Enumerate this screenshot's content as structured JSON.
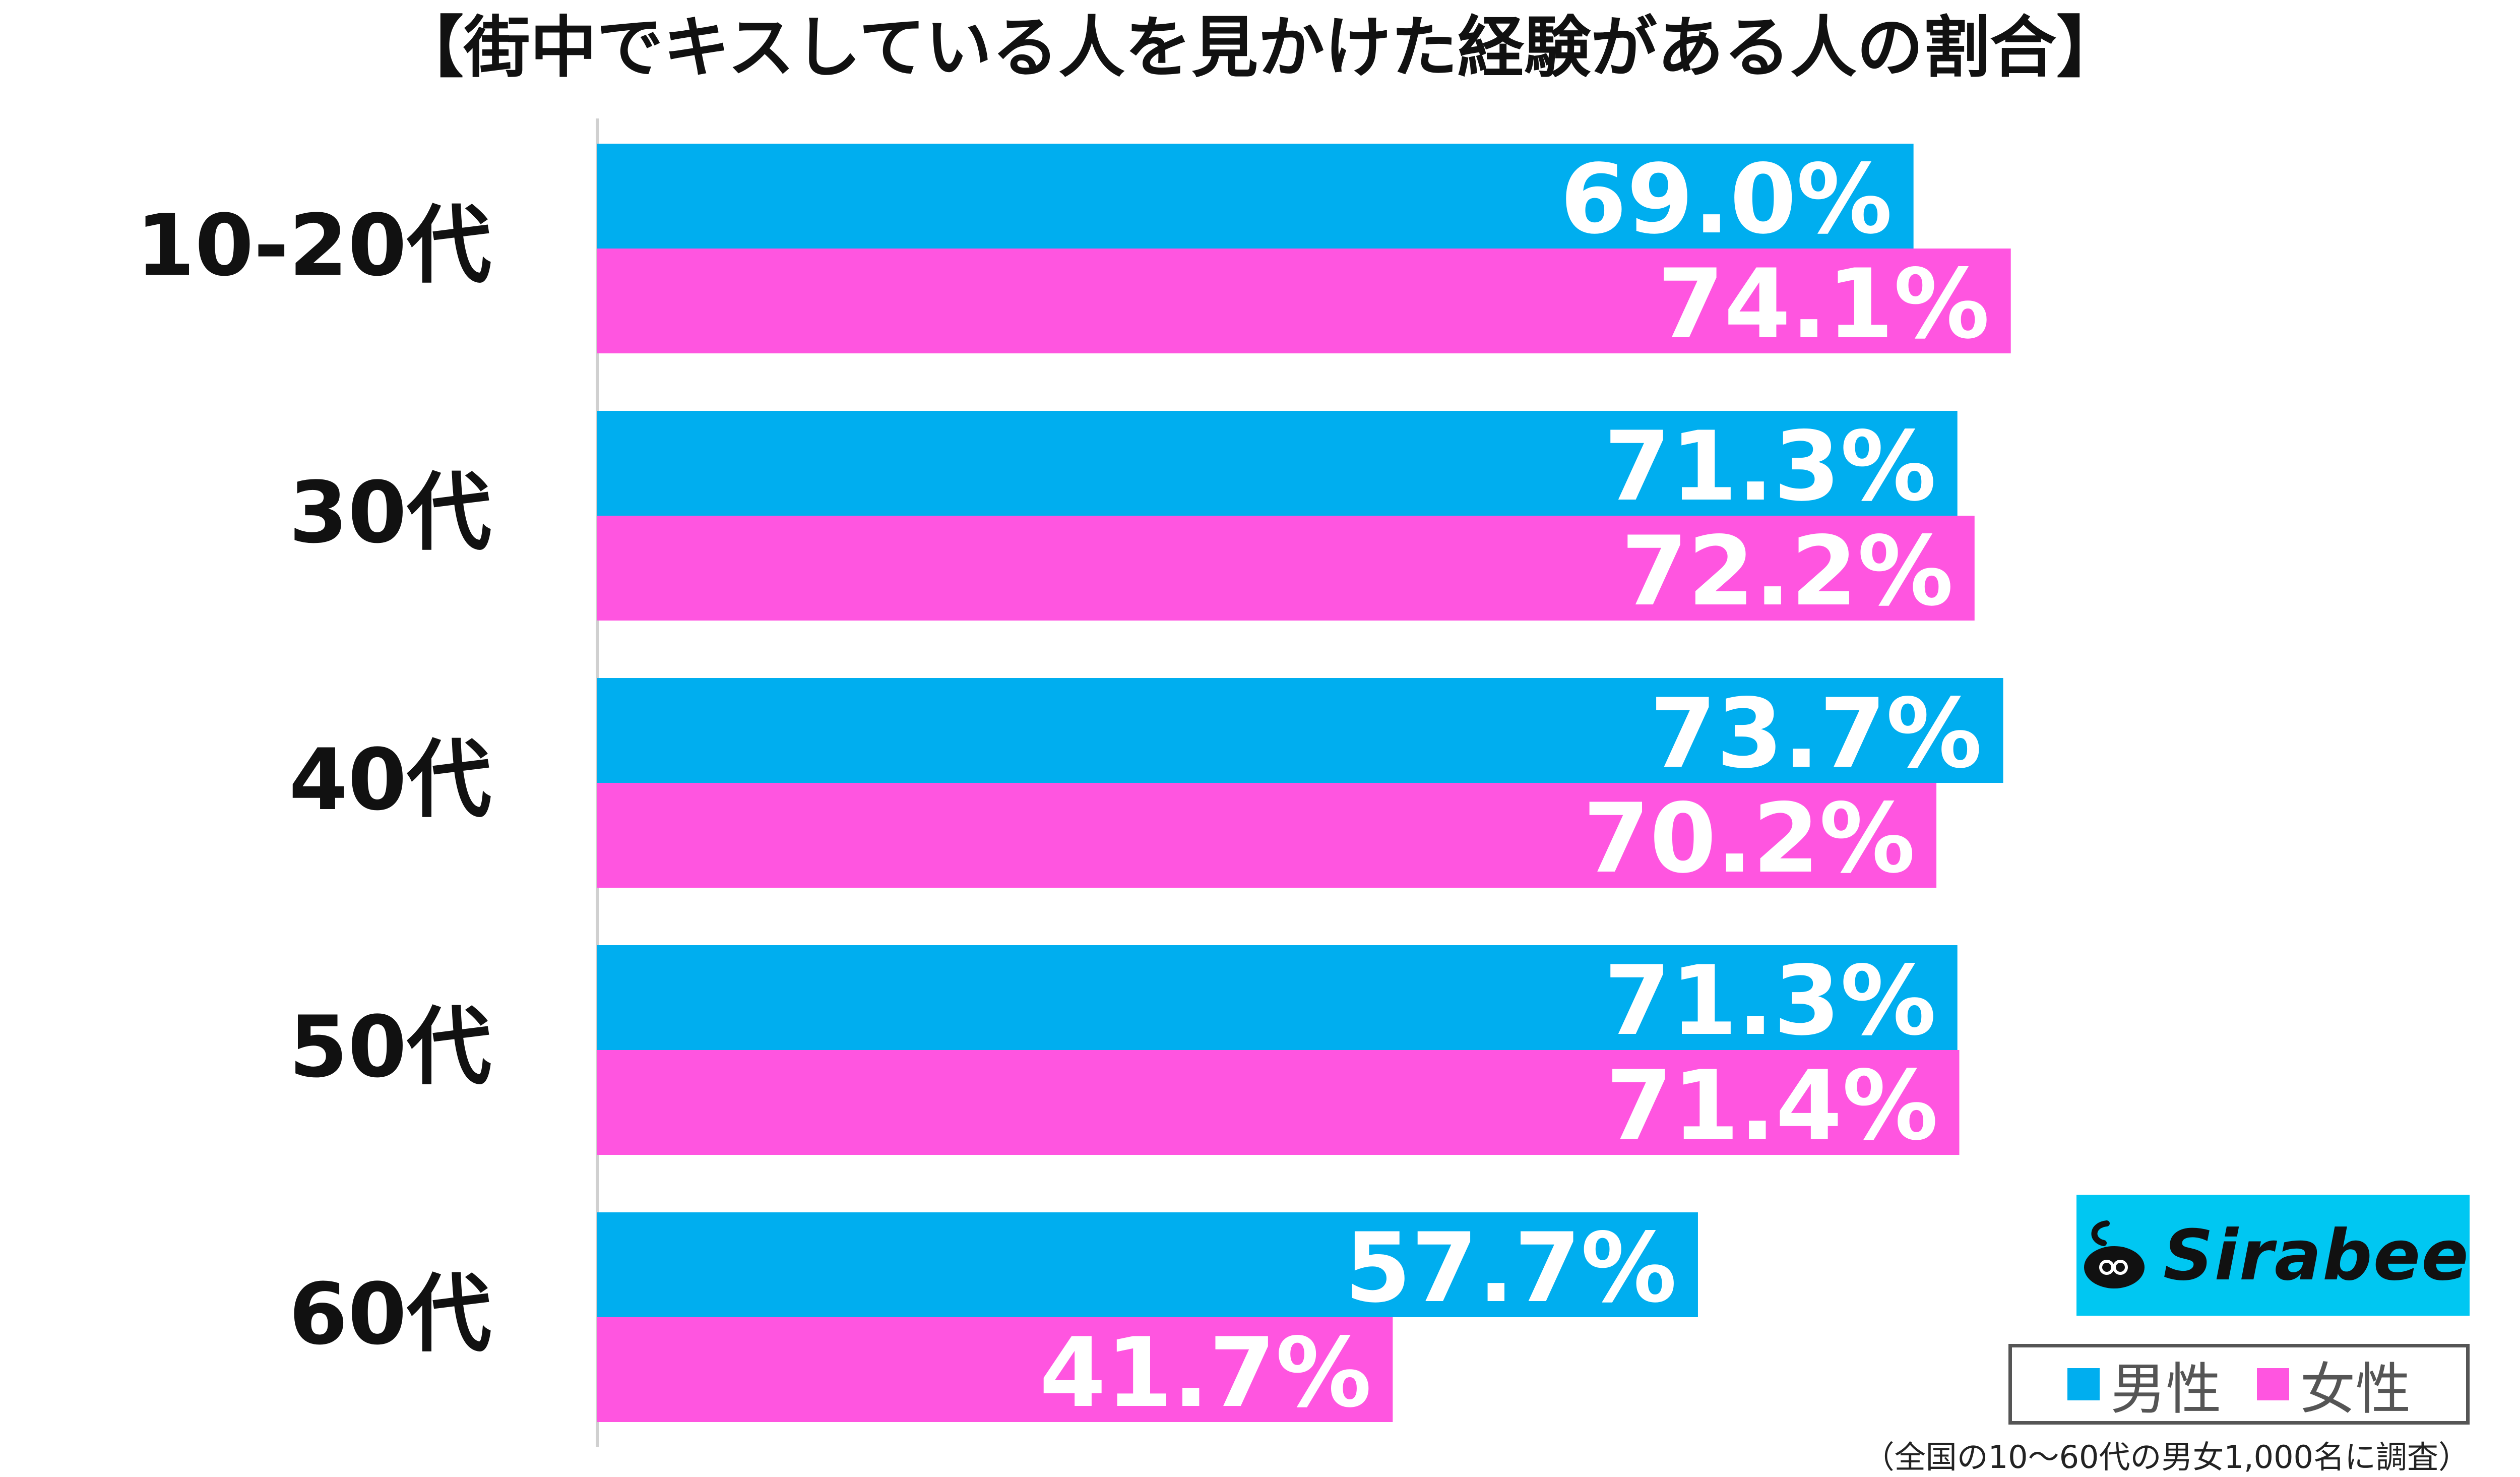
{
  "chart_data": {
    "type": "bar",
    "orientation": "horizontal",
    "title": "【街中でキスしている人を見かけた経験がある人の割合】",
    "categories": [
      "10-20代",
      "30代",
      "40代",
      "50代",
      "60代"
    ],
    "series": [
      {
        "name": "男性",
        "values": [
          69.0,
          71.3,
          73.7,
          71.3,
          57.7
        ],
        "labels": [
          "69.0%",
          "71.3%",
          "73.7%",
          "71.3%",
          "57.7%"
        ],
        "color": "#00aeef"
      },
      {
        "name": "女性",
        "values": [
          74.1,
          72.2,
          70.2,
          71.4,
          41.7
        ],
        "labels": [
          "74.1%",
          "72.2%",
          "70.2%",
          "71.4%",
          "41.7%"
        ],
        "color": "#ff55e0"
      }
    ],
    "xlim": [
      0,
      100
    ],
    "grid": false,
    "legend": "bottom-right",
    "footnote": "（全国の10〜60代の男女1,000名に調査）"
  },
  "logo": {
    "text": "Sirabee",
    "color": "#00c7f2"
  },
  "colors": {
    "axis": "#d0d0d0",
    "label": "#111111",
    "value_label": "#ffffff"
  }
}
